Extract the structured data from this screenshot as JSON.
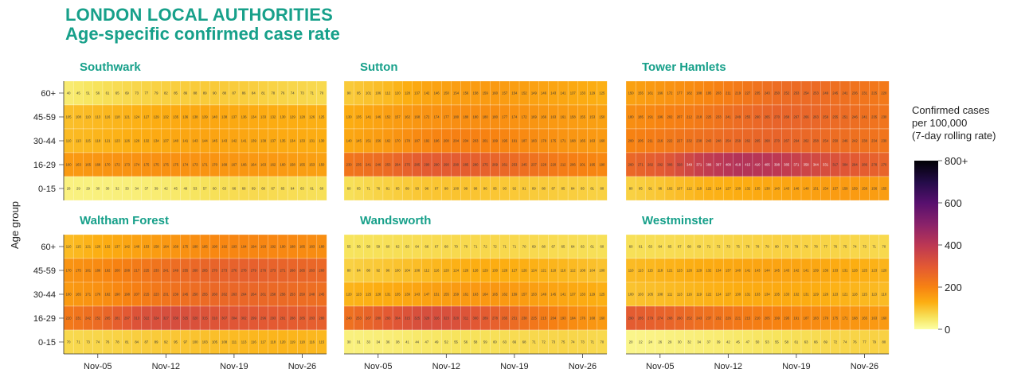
{
  "page": {
    "title": "LONDON LOCAL AUTHORITIES",
    "subtitle": "Age-specific confirmed case rate"
  },
  "chart_data": {
    "type": "heatmap",
    "y_label": "Age group",
    "age_groups": [
      "60+",
      "45-59",
      "30-44",
      "16-29",
      "0-15"
    ],
    "x_ticks": [
      "Nov-05",
      "Nov-12",
      "Nov-19",
      "Nov-26"
    ],
    "days_per_panel": 27,
    "legend": {
      "title_lines": [
        "Confirmed cases",
        " per 100,000",
        " (7-day rolling rate)"
      ],
      "ticks": [
        "800+",
        "600",
        "400",
        "200",
        "0"
      ],
      "range": [
        0,
        800
      ]
    },
    "panels": [
      {
        "name": "Southwark",
        "anchors": {
          "60+": [
            40,
            60,
            75,
            85,
            90,
            85,
            75,
            70
          ],
          "45-59": [
            105,
            115,
            125,
            135,
            140,
            135,
            130,
            125
          ],
          "30-44": [
            110,
            120,
            130,
            140,
            145,
            140,
            135,
            130
          ],
          "16-29": [
            160,
            170,
            175,
            175,
            170,
            165,
            160,
            150
          ],
          "0-15": [
            28,
            30,
            35,
            45,
            60,
            70,
            65,
            60
          ]
        }
      },
      {
        "name": "Sutton",
        "anchors": {
          "60+": [
            90,
            110,
            140,
            155,
            160,
            150,
            140,
            125
          ],
          "45-59": [
            130,
            150,
            170,
            180,
            180,
            170,
            160,
            150
          ],
          "30-44": [
            140,
            160,
            190,
            205,
            200,
            185,
            170,
            160
          ],
          "16-29": [
            230,
            250,
            290,
            290,
            270,
            240,
            210,
            190
          ],
          "0-15": [
            60,
            80,
            95,
            100,
            95,
            90,
            85,
            80
          ]
        }
      },
      {
        "name": "Tower Hamlets",
        "anchors": {
          "60+": [
            150,
            170,
            190,
            220,
            250,
            255,
            240,
            220
          ],
          "45-59": [
            180,
            200,
            220,
            250,
            270,
            265,
            250,
            230
          ],
          "30-44": [
            200,
            220,
            240,
            260,
            270,
            260,
            245,
            230
          ],
          "16-29": [
            260,
            300,
            380,
            420,
            400,
            350,
            300,
            270
          ],
          "0-15": [
            80,
            100,
            120,
            130,
            140,
            150,
            160,
            155
          ]
        }
      },
      {
        "name": "Waltham Forest",
        "anchors": {
          "60+": [
            110,
            130,
            150,
            170,
            190,
            195,
            190,
            180
          ],
          "45-59": [
            170,
            190,
            220,
            250,
            270,
            280,
            270,
            260
          ],
          "30-44": [
            160,
            180,
            210,
            240,
            260,
            265,
            255,
            245
          ],
          "16-29": [
            220,
            260,
            320,
            330,
            310,
            300,
            290,
            280
          ],
          "0-15": [
            70,
            75,
            85,
            95,
            105,
            115,
            120,
            115
          ]
        }
      },
      {
        "name": "Wandsworth",
        "anchors": {
          "60+": [
            55,
            60,
            65,
            70,
            72,
            70,
            65,
            60
          ],
          "45-59": [
            80,
            95,
            110,
            125,
            130,
            125,
            115,
            100
          ],
          "30-44": [
            120,
            130,
            145,
            160,
            165,
            155,
            140,
            125
          ],
          "16-29": [
            240,
            290,
            330,
            320,
            280,
            230,
            190,
            160
          ],
          "0-15": [
            30,
            35,
            45,
            55,
            60,
            70,
            75,
            70
          ]
        }
      },
      {
        "name": "Westminster",
        "anchors": {
          "60+": [
            60,
            65,
            70,
            75,
            80,
            78,
            75,
            70
          ],
          "45-59": [
            110,
            120,
            130,
            140,
            145,
            140,
            130,
            120
          ],
          "30-44": [
            100,
            110,
            120,
            130,
            135,
            130,
            120,
            110
          ],
          "16-29": [
            290,
            270,
            240,
            220,
            200,
            185,
            170,
            160
          ],
          "0-15": [
            20,
            28,
            35,
            45,
            55,
            65,
            75,
            80
          ]
        }
      }
    ]
  }
}
